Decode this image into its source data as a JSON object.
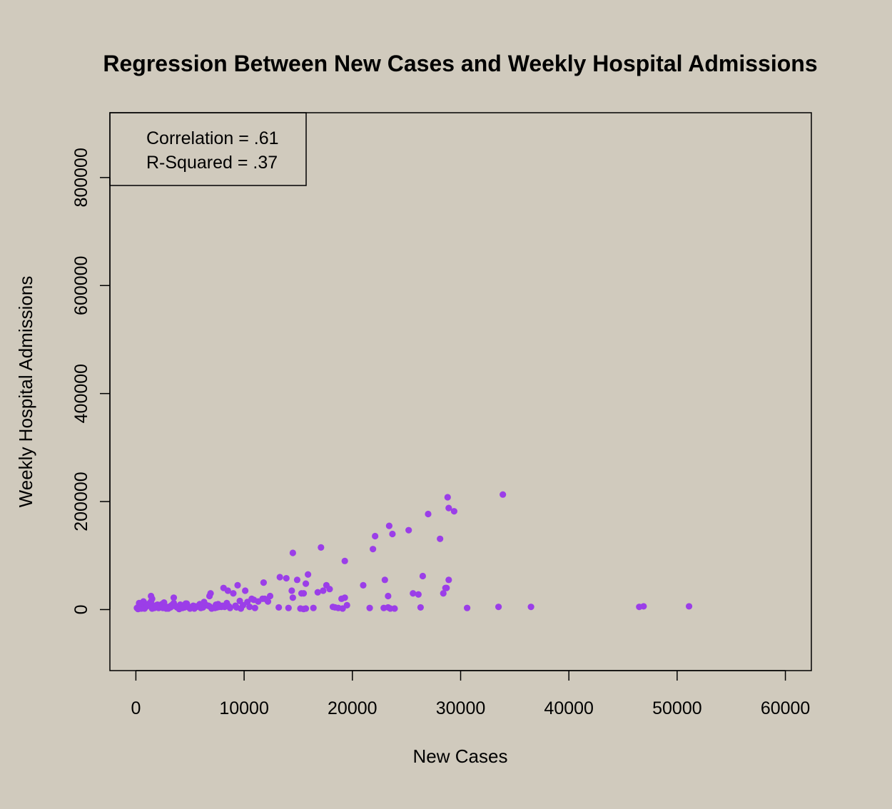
{
  "chart_data": {
    "type": "scatter",
    "title": "Regression Between New Cases and Weekly Hospital Admissions",
    "xlabel": "New Cases",
    "ylabel": "Weekly Hospital Admissions",
    "xlim": [
      -2400,
      62400
    ],
    "ylim": [
      -113000,
      920000
    ],
    "x_ticks": [
      0,
      10000,
      20000,
      30000,
      40000,
      50000,
      60000
    ],
    "x_tick_labels": [
      "0",
      "10000",
      "20000",
      "30000",
      "40000",
      "50000",
      "60000"
    ],
    "y_ticks": [
      0,
      200000,
      400000,
      600000,
      800000
    ],
    "y_tick_labels": [
      "0",
      "200000",
      "400000",
      "600000",
      "800000"
    ],
    "grid": false,
    "legend_position": "top-left",
    "legend": [
      "Correlation = .61",
      "R-Squared = .37"
    ],
    "point_color": "#9b3ee8",
    "series": [
      {
        "x": [
          100,
          300,
          500,
          700,
          900,
          1200,
          1400,
          1600,
          1800,
          2100,
          2400,
          2700,
          3000,
          3300,
          3500,
          3800,
          4100,
          4400,
          4700,
          5000,
          5300,
          5600,
          5900,
          6200,
          6500,
          6800,
          7100,
          7400,
          7700,
          8000,
          200,
          600,
          1000,
          1500,
          2000,
          2500,
          3000,
          3500,
          4000,
          4500,
          5000,
          5500,
          6000,
          6500,
          7000,
          7500,
          8200,
          8700,
          9200,
          9700,
          400,
          800,
          1300,
          1700,
          2200,
          2800,
          3200,
          3700,
          4300,
          4900,
          5400,
          6100,
          6700,
          7300,
          7900,
          8600,
          9300,
          9900,
          10500,
          11000,
          1400,
          1500,
          3500,
          6900,
          6800,
          8100,
          8500,
          9000,
          9400,
          10100,
          10700,
          11300,
          11900,
          12400,
          300,
          700,
          1100,
          1900,
          2600,
          3400,
          4600,
          5800,
          6300,
          7600,
          8400,
          9600,
          10300,
          10900,
          11700,
          12200,
          11800,
          13300,
          13900,
          14400,
          14500,
          14900,
          15300,
          15700,
          15900,
          16800,
          17300,
          17600,
          17900,
          18200,
          18700,
          19000,
          19500,
          14500,
          17100,
          19300,
          21000,
          21900,
          22100,
          23000,
          23400,
          23700,
          25200,
          25600,
          26100,
          26500,
          27000,
          28100,
          28400,
          28700,
          28800,
          28900,
          29400,
          13200,
          14100,
          15200,
          15500,
          16400,
          18400,
          19300,
          21600,
          22900,
          23300,
          23900,
          26300,
          30600,
          33500,
          36500,
          46500,
          46900,
          51100,
          28600,
          28900,
          33900,
          23300,
          23500,
          15500,
          15700,
          19100
        ],
        "y": [
          3000,
          8000,
          2000,
          12000,
          5000,
          9000,
          15000,
          4000,
          7000,
          3000,
          10000,
          5000,
          2000,
          8000,
          12000,
          4000,
          9000,
          6000,
          11000,
          3000,
          7000,
          5000,
          10000,
          4000,
          8000,
          6000,
          3000,
          9000,
          5000,
          7000,
          1000,
          4000,
          6000,
          2000,
          9000,
          3000,
          5000,
          7000,
          1000,
          4000,
          2000,
          6000,
          3000,
          8000,
          2000,
          4000,
          5000,
          3000,
          7000,
          2000,
          5000,
          2000,
          8000,
          3000,
          6000,
          2000,
          4000,
          6000,
          3000,
          5000,
          2000,
          4000,
          7000,
          3000,
          5000,
          6000,
          4000,
          8000,
          5000,
          3000,
          25000,
          20000,
          22000,
          30000,
          25000,
          40000,
          35000,
          30000,
          45000,
          35000,
          20000,
          15000,
          20000,
          25000,
          12000,
          15000,
          10000,
          8000,
          13000,
          9000,
          11000,
          7000,
          14000,
          10000,
          12000,
          16000,
          14000,
          18000,
          20000,
          15000,
          50000,
          60000,
          58000,
          35000,
          22000,
          55000,
          30000,
          48000,
          65000,
          32000,
          35000,
          45000,
          38000,
          5000,
          3000,
          20000,
          8000,
          105000,
          115000,
          90000,
          45000,
          112000,
          136000,
          55000,
          155000,
          140000,
          147000,
          30000,
          28000,
          62000,
          177000,
          131000,
          30000,
          40000,
          208000,
          188000,
          182000,
          4000,
          3000,
          2000,
          30000,
          3000,
          4000,
          22000,
          3000,
          3000,
          25000,
          2000,
          4000,
          3000,
          5000,
          5000,
          5000,
          6000,
          6000,
          40000,
          55000,
          213000,
          4000,
          2000,
          1000,
          2000,
          2000
        ]
      }
    ]
  }
}
